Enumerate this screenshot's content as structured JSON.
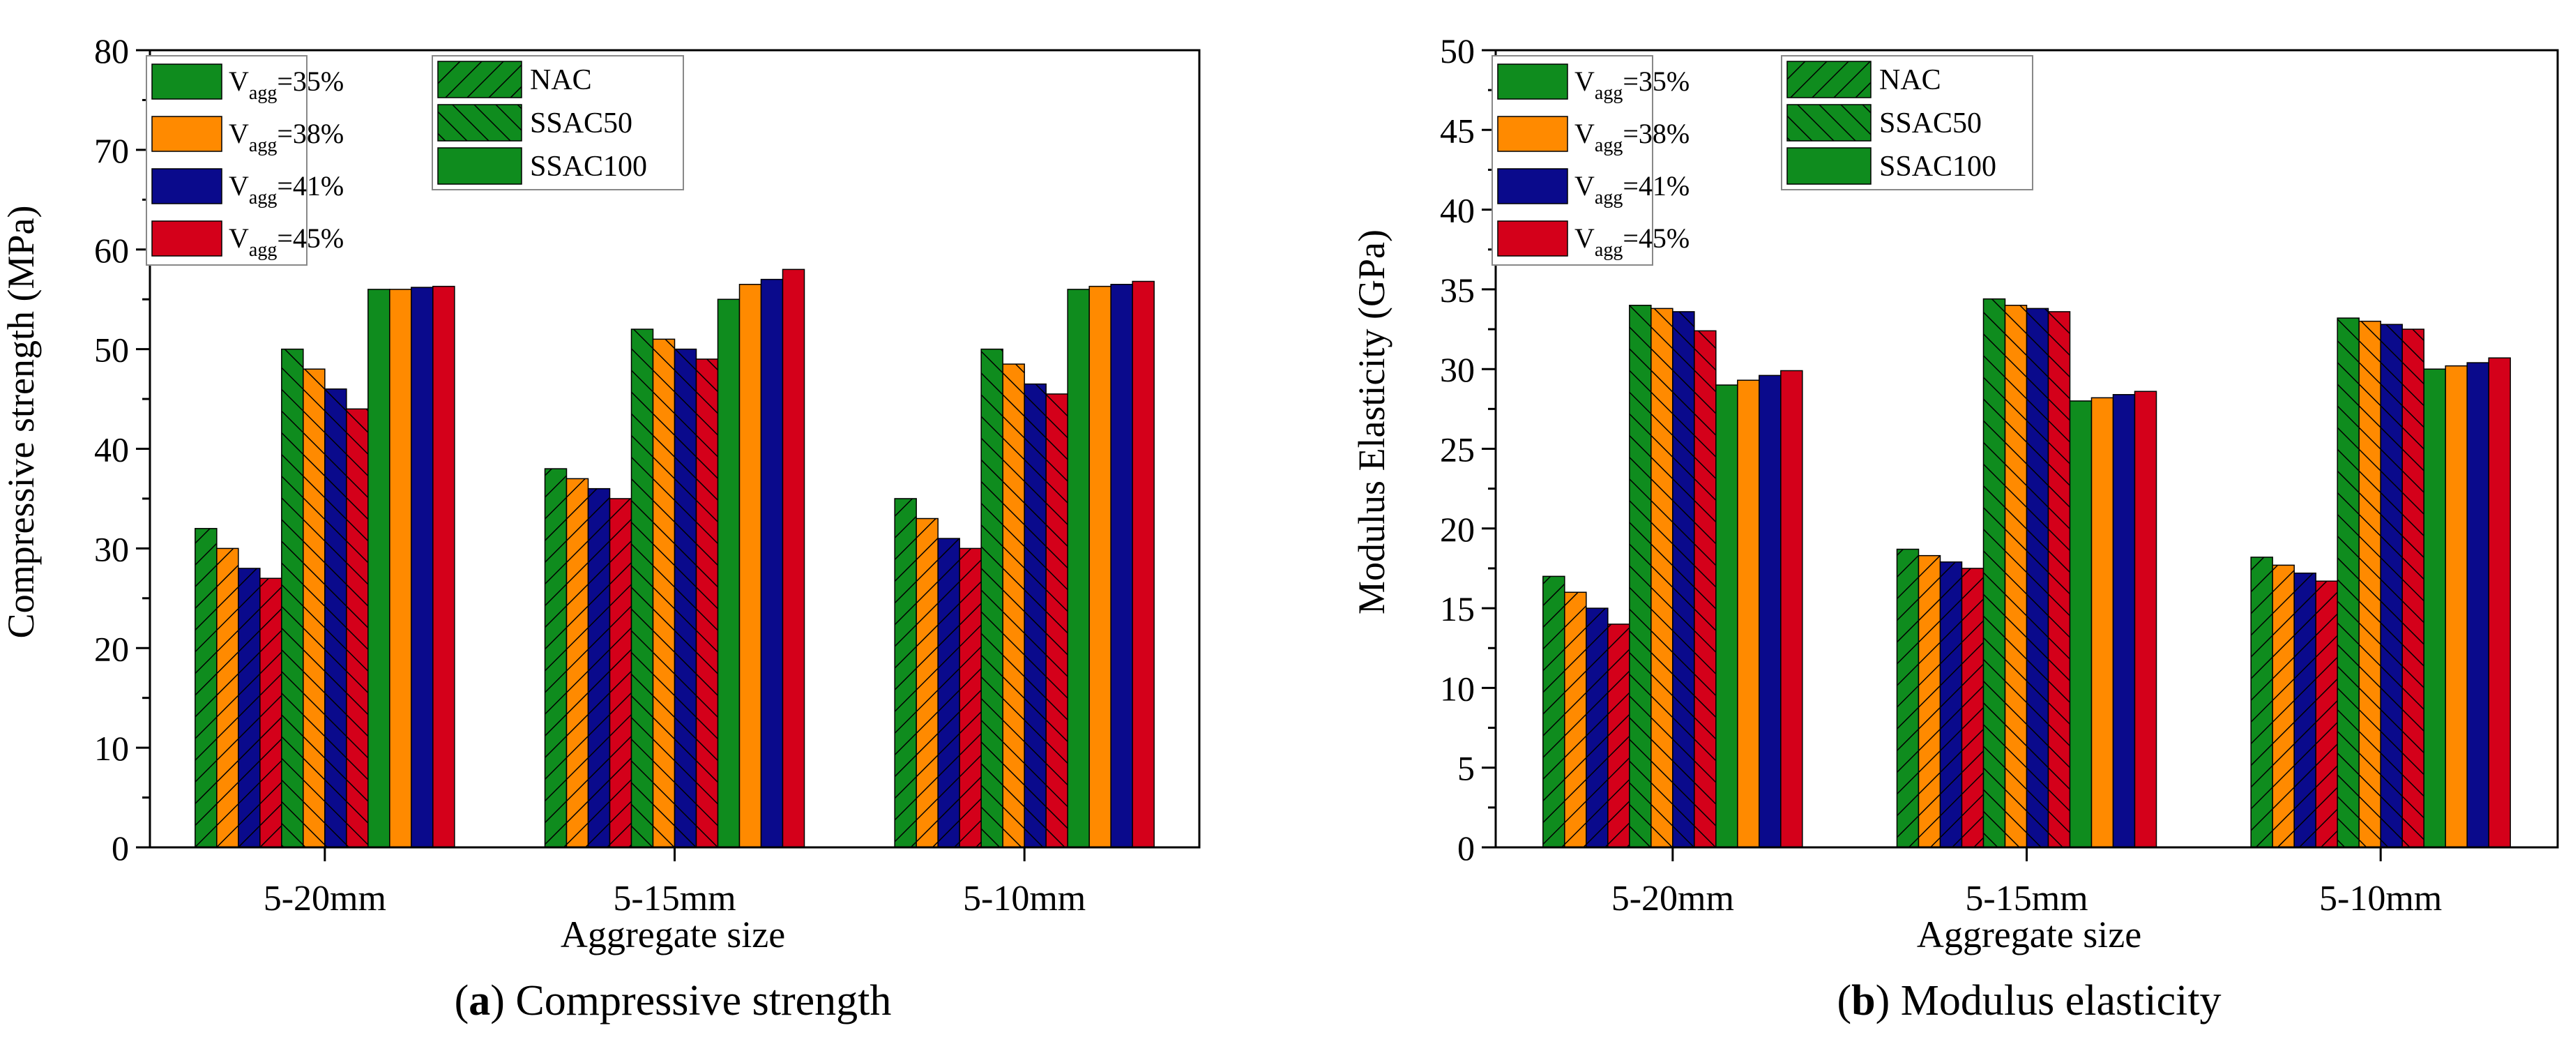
{
  "colors": {
    "v35": "#0f8c1e",
    "v38": "#ff8a00",
    "v41": "#0a0a8c",
    "v45": "#d4001a",
    "axis": "#000000"
  },
  "chart_data": [
    {
      "type": "bar",
      "caption": {
        "label": "a",
        "text": " Compressive strength"
      },
      "xlabel": "Aggregate size",
      "ylabel": "Compressive strength (MPa)",
      "ylim": [
        0,
        80
      ],
      "yticks": [
        0,
        10,
        20,
        30,
        40,
        50,
        60,
        70,
        80
      ],
      "categories": [
        "5-20mm",
        "5-15mm",
        "5-10mm"
      ],
      "groups": [
        "NAC",
        "SSAC50",
        "SSAC100"
      ],
      "series": [
        {
          "name": "35%",
          "values": [
            [
              32,
              50,
              56
            ],
            [
              38,
              52,
              55
            ],
            [
              35,
              50,
              56
            ]
          ]
        },
        {
          "name": "38%",
          "values": [
            [
              30,
              48,
              56
            ],
            [
              37,
              51,
              56.5
            ],
            [
              33,
              48.5,
              56.3
            ]
          ]
        },
        {
          "name": "41%",
          "values": [
            [
              28,
              46,
              56.2
            ],
            [
              36,
              50,
              57
            ],
            [
              31,
              46.5,
              56.5
            ]
          ]
        },
        {
          "name": "45%",
          "values": [
            [
              27,
              44,
              56.3
            ],
            [
              35,
              49,
              58
            ],
            [
              30,
              45.5,
              56.8
            ]
          ]
        }
      ],
      "legend_vagg": {
        "prefix": "V",
        "subscript": "agg",
        "entries": [
          "=35%",
          "=38%",
          "=41%",
          "=45%"
        ]
      },
      "legend_groups": [
        "NAC",
        "SSAC50",
        "SSAC100"
      ]
    },
    {
      "type": "bar",
      "caption": {
        "label": "b",
        "text": " Modulus elasticity"
      },
      "xlabel": "Aggregate size",
      "ylabel": "Modulus Elasticity (GPa)",
      "ylim": [
        0,
        50
      ],
      "yticks": [
        0,
        5,
        10,
        15,
        20,
        25,
        30,
        35,
        40,
        45,
        50
      ],
      "categories": [
        "5-20mm",
        "5-15mm",
        "5-10mm"
      ],
      "groups": [
        "NAC",
        "SSAC50",
        "SSAC100"
      ],
      "series": [
        {
          "name": "35%",
          "values": [
            [
              17,
              34,
              29
            ],
            [
              18.7,
              34.4,
              28
            ],
            [
              18.2,
              33.2,
              30
            ]
          ]
        },
        {
          "name": "38%",
          "values": [
            [
              16,
              33.8,
              29.3
            ],
            [
              18.3,
              34,
              28.2
            ],
            [
              17.7,
              33,
              30.2
            ]
          ]
        },
        {
          "name": "41%",
          "values": [
            [
              15,
              33.6,
              29.6
            ],
            [
              17.9,
              33.8,
              28.4
            ],
            [
              17.2,
              32.8,
              30.4
            ]
          ]
        },
        {
          "name": "45%",
          "values": [
            [
              14,
              32.4,
              29.9
            ],
            [
              17.5,
              33.6,
              28.6
            ],
            [
              16.7,
              32.5,
              30.7
            ]
          ]
        }
      ],
      "legend_vagg": {
        "prefix": "V",
        "subscript": "agg",
        "entries": [
          "=35%",
          "=38%",
          "=41%",
          "=45%"
        ]
      },
      "legend_groups": [
        "NAC",
        "SSAC50",
        "SSAC100"
      ]
    }
  ]
}
